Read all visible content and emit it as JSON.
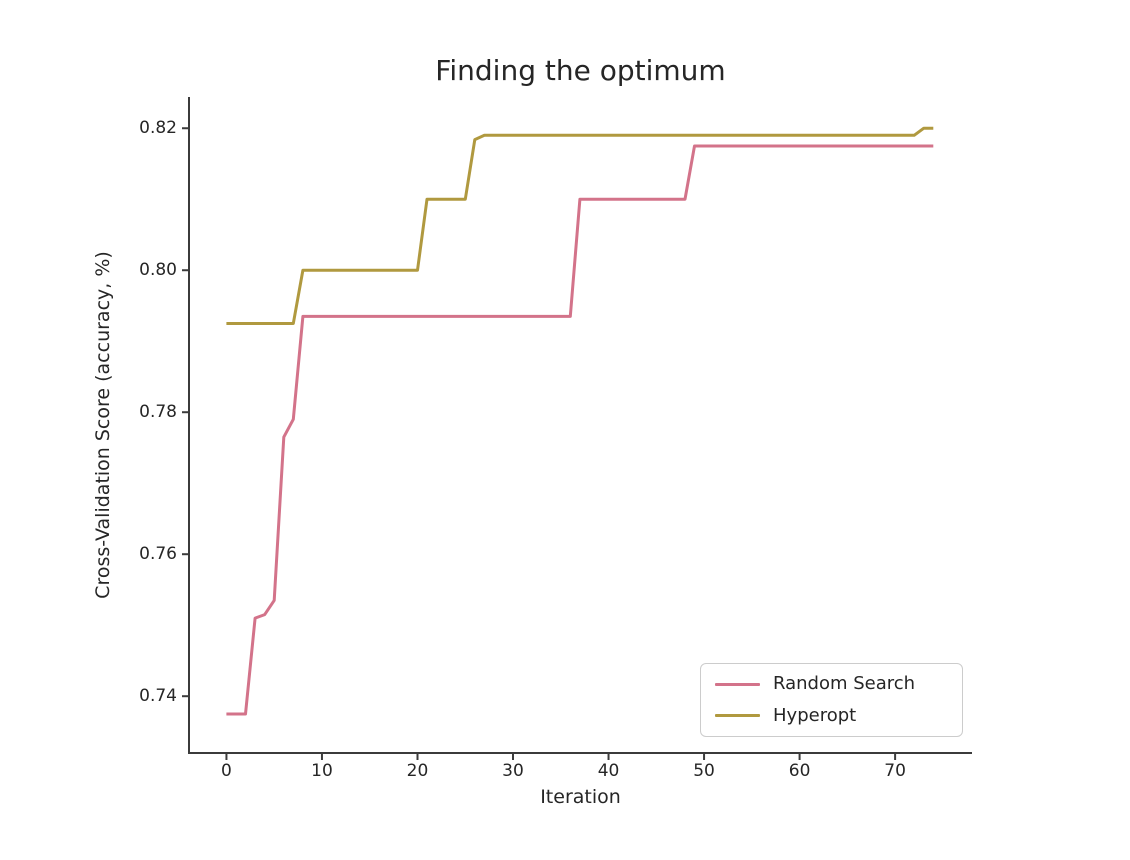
{
  "chart_data": {
    "type": "line",
    "title": "Finding the optimum",
    "xlabel": "Iteration",
    "ylabel": "Cross-Validation Score (accuracy, %)",
    "x_ticks": [
      0,
      10,
      20,
      30,
      40,
      50,
      60,
      70
    ],
    "x_tick_labels": [
      "0",
      "10",
      "20",
      "30",
      "40",
      "50",
      "60",
      "70"
    ],
    "y_ticks": [
      0.74,
      0.76,
      0.78,
      0.8,
      0.82
    ],
    "y_tick_labels": [
      "0.74",
      "0.76",
      "0.78",
      "0.80",
      "0.82"
    ],
    "xlim": [
      -3.92,
      78.05
    ],
    "ylim": [
      0.732,
      0.8244
    ],
    "grid": false,
    "legend_position": "lower right",
    "series": [
      {
        "name": "Random Search",
        "color": "#d3738a",
        "points": [
          [
            0,
            0.7375
          ],
          [
            1,
            0.7375
          ],
          [
            2,
            0.7375
          ],
          [
            3,
            0.751
          ],
          [
            4,
            0.7515
          ],
          [
            5,
            0.7535
          ],
          [
            6,
            0.7765
          ],
          [
            7,
            0.779
          ],
          [
            8,
            0.7935
          ],
          [
            36,
            0.7935
          ],
          [
            37,
            0.81
          ],
          [
            48,
            0.81
          ],
          [
            49,
            0.8175
          ],
          [
            74,
            0.8175
          ]
        ]
      },
      {
        "name": "Hyperopt",
        "color": "#b0993f",
        "points": [
          [
            0,
            0.7925
          ],
          [
            7,
            0.7925
          ],
          [
            8,
            0.8
          ],
          [
            20,
            0.8
          ],
          [
            21,
            0.81
          ],
          [
            25,
            0.81
          ],
          [
            26,
            0.8184
          ],
          [
            27,
            0.819
          ],
          [
            72,
            0.819
          ],
          [
            73,
            0.82
          ],
          [
            74,
            0.82
          ]
        ]
      }
    ]
  },
  "colors": {
    "axis": "#3b3b3b",
    "text": "#262626",
    "legend_border": "#cccccc",
    "background": "#ffffff"
  }
}
